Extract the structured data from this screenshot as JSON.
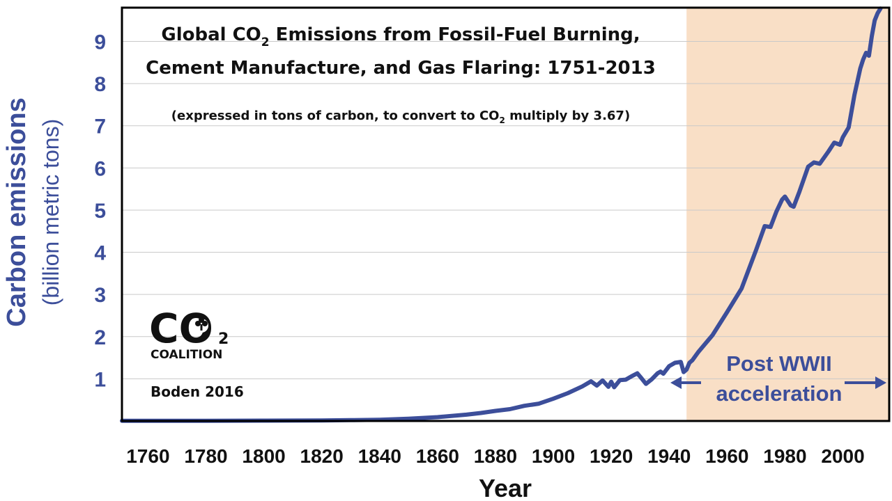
{
  "colors": {
    "line": "#3c4e9a",
    "axis_text": "#3c4e9a",
    "shade": "#f9dfc6",
    "grid": "#c9c9c9",
    "frame": "#000000"
  },
  "logo": {
    "icon": "tree-icon",
    "co_text": "CO",
    "sub_text": "2",
    "name_text": "COALITION"
  },
  "source": "Boden 2016",
  "chart_data": {
    "type": "line",
    "title": {
      "line1_pre": "Global CO",
      "line1_sub": "2",
      "line1_post": " Emissions from Fossil-Fuel Burning,",
      "line2": "Cement Manufacture, and Gas Flaring: 1751-2013"
    },
    "subtitle": {
      "pre": "(expressed in tons of carbon, to convert to CO",
      "sub": "2",
      "post": " multiply by 3.67)"
    },
    "xlabel": "Year",
    "ylabel": "Carbon emissions",
    "ylabel_units": "(billion metric tons)",
    "xlim": [
      1751,
      2016
    ],
    "ylim": [
      0,
      9.8
    ],
    "x_ticks": [
      1760,
      1780,
      1800,
      1820,
      1840,
      1860,
      1880,
      1900,
      1920,
      1940,
      1960,
      1980,
      2000
    ],
    "y_ticks": [
      1,
      2,
      3,
      4,
      5,
      6,
      7,
      8,
      9
    ],
    "grid": "horizontal",
    "shaded_region": {
      "from": 1946,
      "to": 2016,
      "label_line1": "Post WWII",
      "label_line2": "acceleration"
    },
    "series": [
      {
        "name": "Carbon emissions",
        "x": [
          1751,
          1780,
          1800,
          1820,
          1830,
          1840,
          1850,
          1860,
          1870,
          1875,
          1880,
          1885,
          1890,
          1895,
          1900,
          1905,
          1910,
          1913,
          1915,
          1917,
          1919,
          1920,
          1921,
          1923,
          1925,
          1927,
          1929,
          1930,
          1932,
          1934,
          1936,
          1937,
          1938,
          1940,
          1942,
          1944,
          1945,
          1946,
          1947,
          1948,
          1950,
          1955,
          1960,
          1965,
          1970,
          1973,
          1975,
          1977,
          1979,
          1980,
          1982,
          1983,
          1985,
          1988,
          1990,
          1992,
          1995,
          1997,
          1999,
          2000,
          2002,
          2004,
          2006,
          2007,
          2008,
          2009,
          2010,
          2011,
          2012,
          2013
        ],
        "y": [
          0.003,
          0.004,
          0.008,
          0.014,
          0.02,
          0.03,
          0.054,
          0.09,
          0.15,
          0.19,
          0.24,
          0.28,
          0.36,
          0.41,
          0.53,
          0.66,
          0.82,
          0.94,
          0.84,
          0.96,
          0.81,
          0.93,
          0.8,
          0.97,
          0.98,
          1.06,
          1.13,
          1.05,
          0.88,
          0.99,
          1.13,
          1.17,
          1.12,
          1.3,
          1.38,
          1.4,
          1.16,
          1.22,
          1.38,
          1.44,
          1.63,
          2.04,
          2.58,
          3.14,
          4.05,
          4.62,
          4.6,
          4.96,
          5.25,
          5.32,
          5.11,
          5.08,
          5.44,
          6.03,
          6.13,
          6.1,
          6.39,
          6.6,
          6.55,
          6.73,
          6.96,
          7.73,
          8.36,
          8.57,
          8.73,
          8.66,
          9.13,
          9.5,
          9.67,
          9.78
        ]
      }
    ]
  }
}
